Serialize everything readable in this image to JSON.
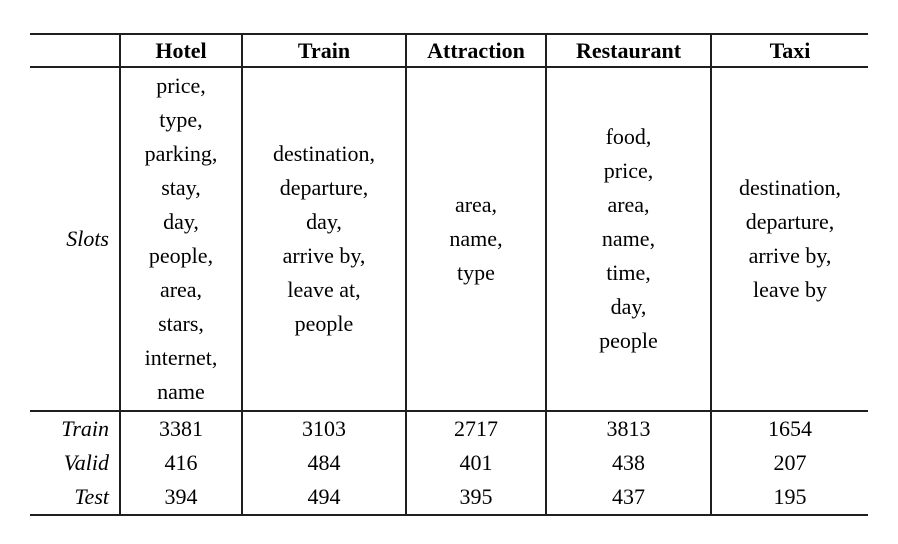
{
  "table": {
    "columns": [
      "",
      "Hotel",
      "Train",
      "Attraction",
      "Restaurant",
      "Taxi"
    ],
    "slots_row_label": "Slots",
    "slots": {
      "hotel": [
        "price",
        "type",
        "parking",
        "stay",
        "day",
        "people",
        "area",
        "stars",
        "internet",
        "name"
      ],
      "train": [
        "destination",
        "departure",
        "day",
        "arrive by",
        "leave at",
        "people"
      ],
      "attraction": [
        "area",
        "name",
        "type"
      ],
      "restaurant": [
        "food",
        "price",
        "area",
        "name",
        "time",
        "day",
        "people"
      ],
      "taxi": [
        "destination",
        "departure",
        "arrive by",
        "leave by"
      ]
    },
    "stats_rows": [
      {
        "label": "Train",
        "values": [
          "3381",
          "3103",
          "2717",
          "3813",
          "1654"
        ]
      },
      {
        "label": "Valid",
        "values": [
          "416",
          "484",
          "401",
          "438",
          "207"
        ]
      },
      {
        "label": "Test",
        "values": [
          "394",
          "494",
          "395",
          "437",
          "195"
        ]
      }
    ]
  }
}
